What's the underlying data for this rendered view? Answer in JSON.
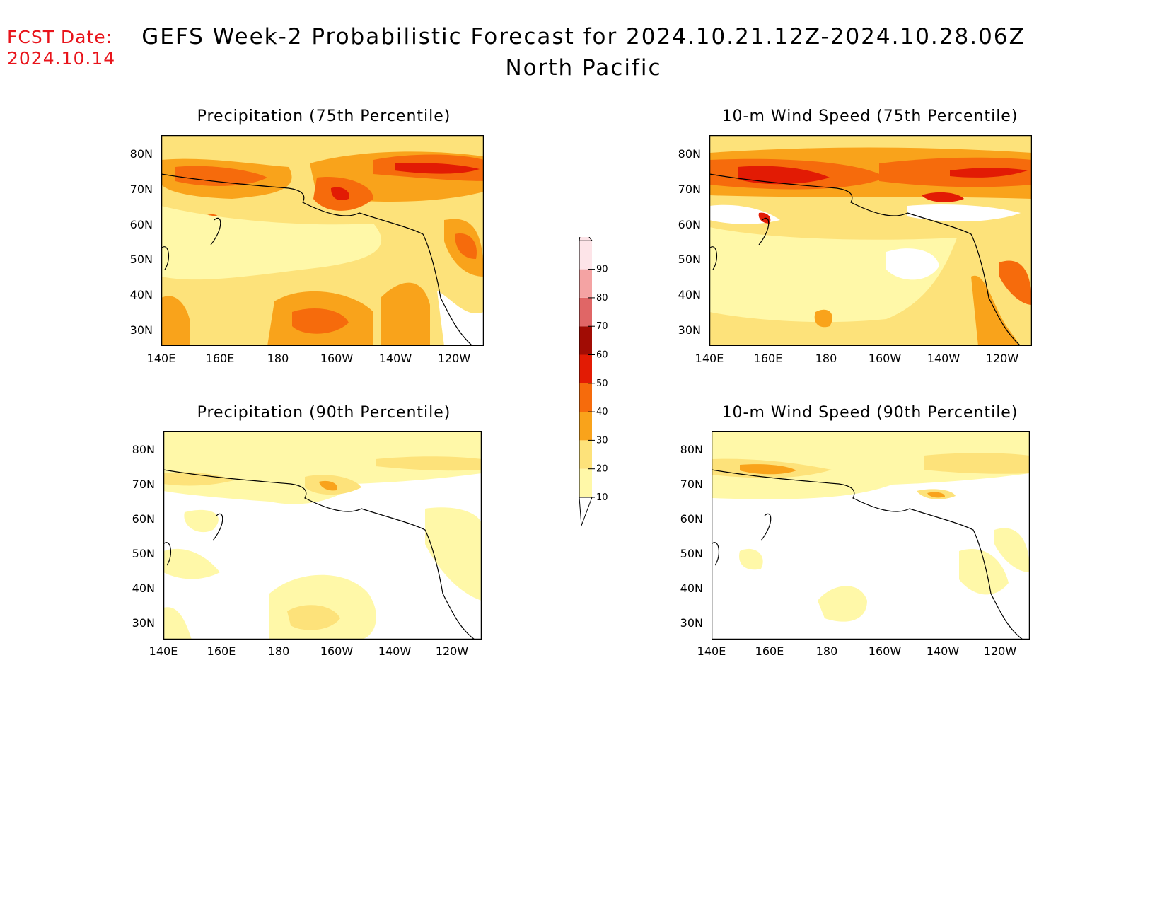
{
  "forecast_date": {
    "label": "FCST Date:",
    "value": "2024.10.14"
  },
  "title": "GEFS Week-2 Probabilistic Forecast for 2024.10.21.12Z-2024.10.28.06Z",
  "subtitle": "North Pacific",
  "panels": [
    {
      "title": "Precipitation (75th Percentile)"
    },
    {
      "title": "10-m Wind Speed (75th Percentile)"
    },
    {
      "title": "Precipitation (90th Percentile)"
    },
    {
      "title": "10-m Wind Speed (90th Percentile)"
    }
  ],
  "axes": {
    "lon_ticks": [
      "140E",
      "160E",
      "180",
      "160W",
      "140W",
      "120W"
    ],
    "lat_ticks": [
      "80N",
      "70N",
      "60N",
      "50N",
      "40N",
      "30N"
    ]
  },
  "colorbar": {
    "levels": [
      "10",
      "20",
      "30",
      "40",
      "50",
      "60",
      "70",
      "80",
      "90"
    ],
    "colors": [
      "#fff8a8",
      "#fde27a",
      "#f9a31b",
      "#f66b0c",
      "#e21b04",
      "#a10c04",
      "#e06666",
      "#f4a3a3",
      "#fde4e8"
    ]
  },
  "colors": {
    "land_line": "#000000",
    "forecast_date": "#e8141b"
  }
}
